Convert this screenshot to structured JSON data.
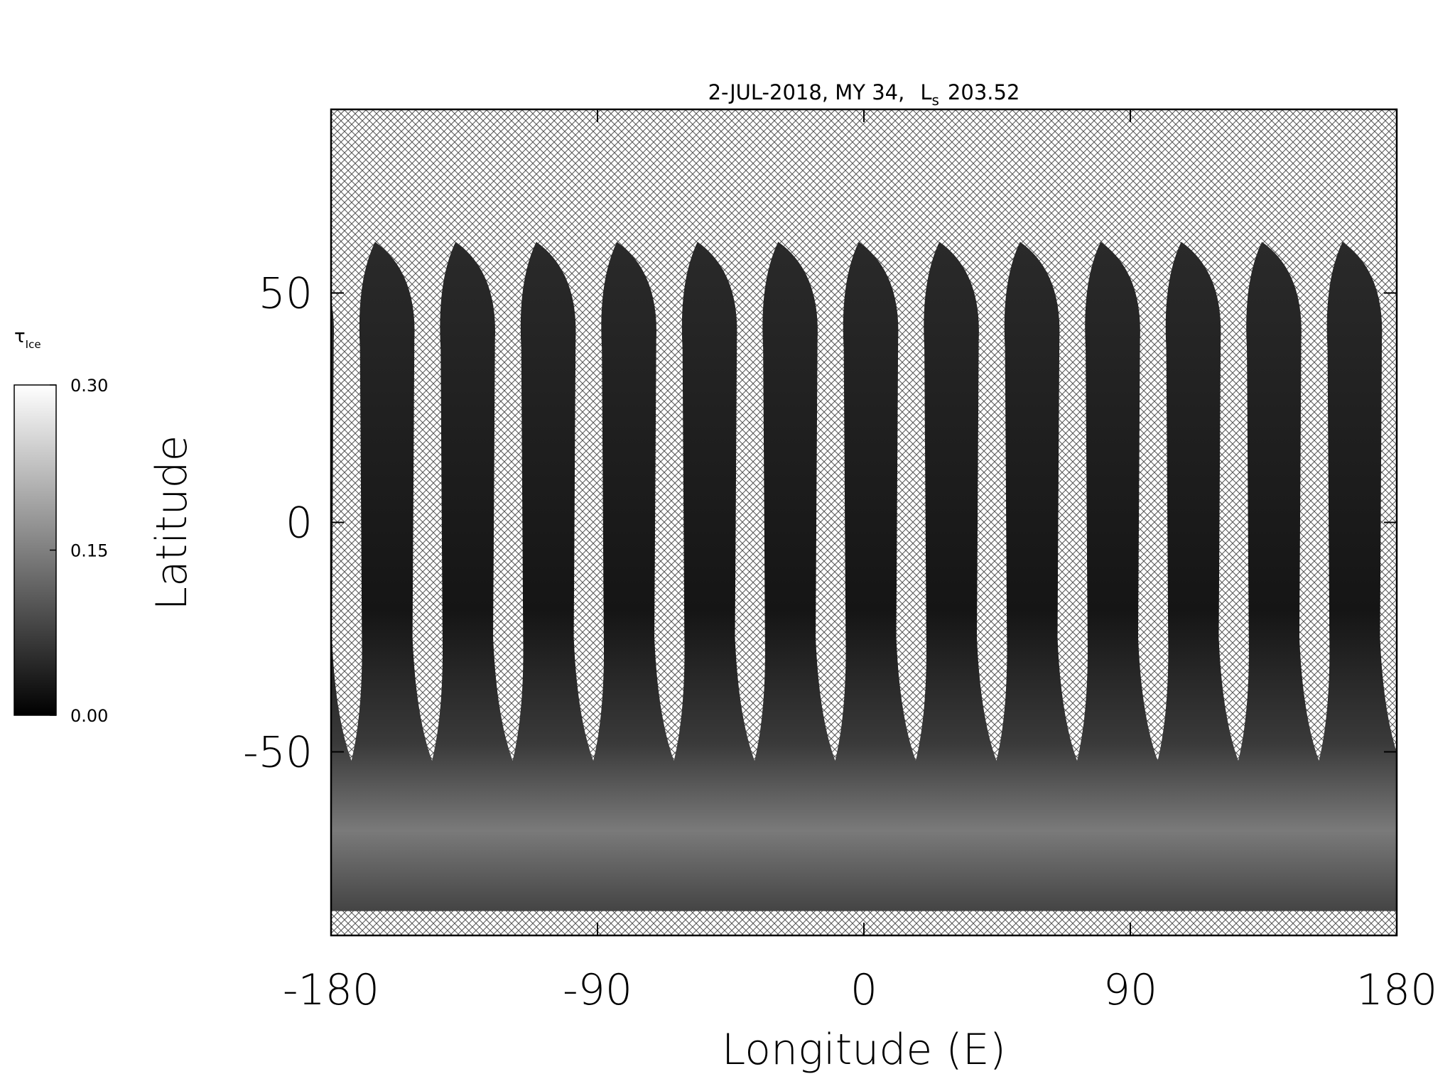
{
  "chart_data": {
    "type": "map",
    "title": "2-JUL-2018, MY 34,",
    "title_symbol": "L",
    "title_subscript": "s",
    "title_value": "203.52",
    "x_label": "Longitude (E)",
    "y_label": "Latitude",
    "xlim": [
      -180,
      180
    ],
    "xticks": [
      -180,
      -90,
      0,
      90,
      180
    ],
    "ylim": [
      -90,
      90
    ],
    "yticks": [
      -50,
      0,
      50
    ],
    "colorbar": {
      "symbol": "τ",
      "subscript": "Ice",
      "clim": [
        0,
        0.3
      ],
      "ticks": [
        {
          "value": 0,
          "label": "0.00"
        },
        {
          "value": 0.15,
          "label": "0.15"
        },
        {
          "value": 0.3,
          "label": "0.30"
        }
      ]
    }
  }
}
